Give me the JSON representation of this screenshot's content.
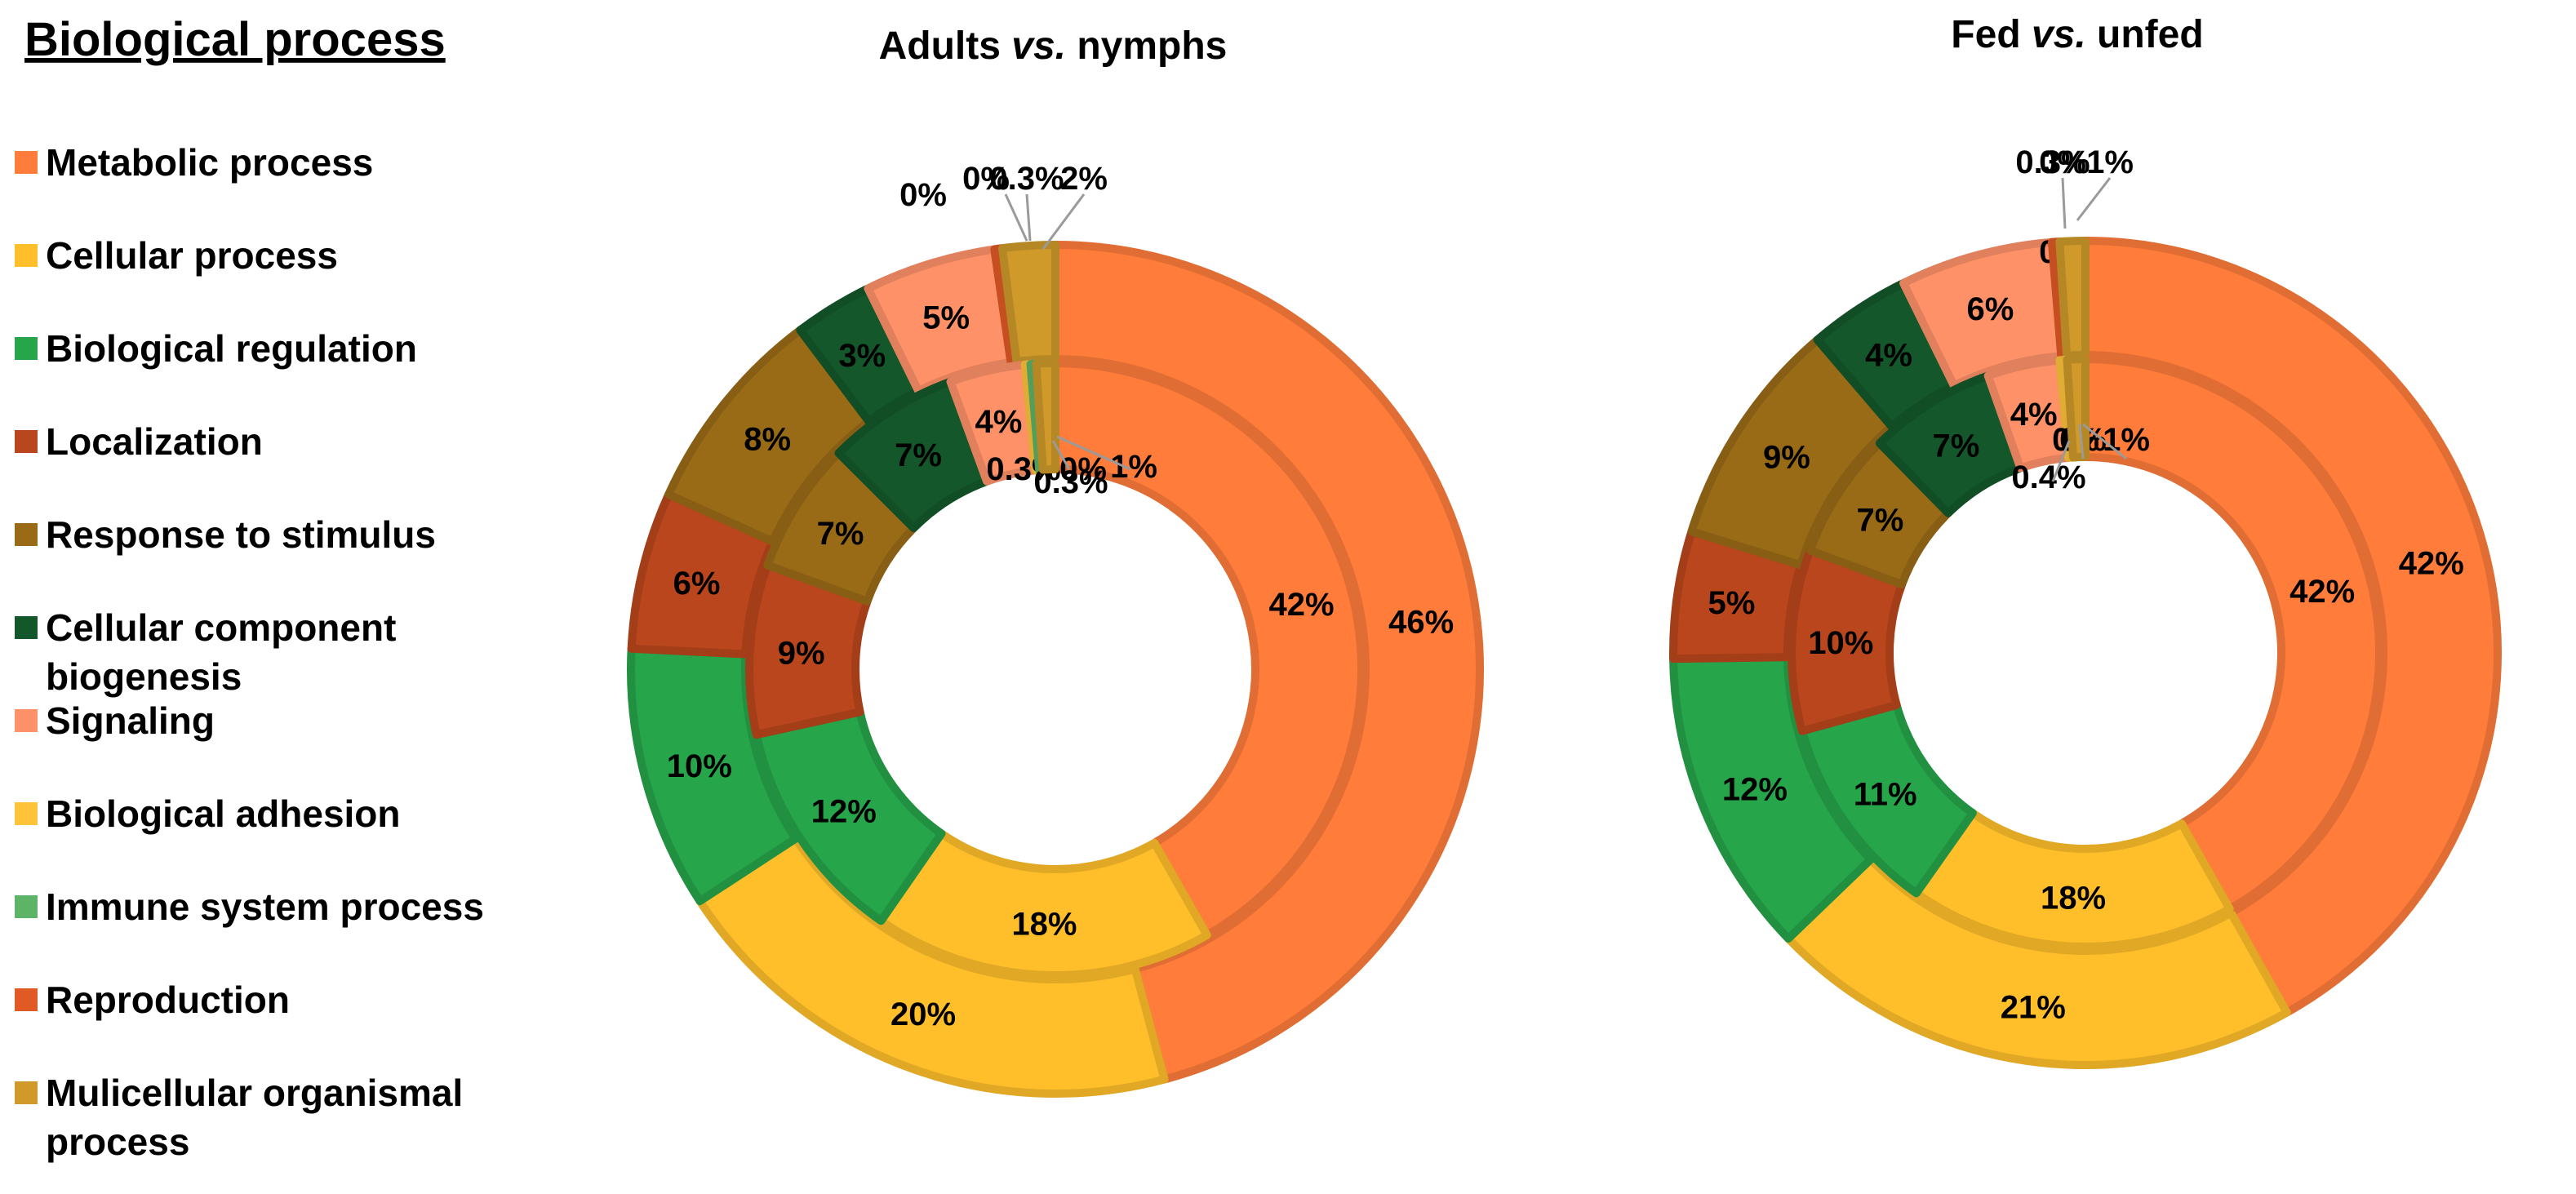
{
  "legend": {
    "title": "Biological process",
    "items": [
      {
        "lines": [
          "Metabolic process"
        ],
        "color": "#FF7C3A"
      },
      {
        "lines": [
          "Cellular process"
        ],
        "color": "#FFBF2A"
      },
      {
        "lines": [
          "Biological regulation"
        ],
        "color": "#26A54A"
      },
      {
        "lines": [
          "Localization"
        ],
        "color": "#B9461C"
      },
      {
        "lines": [
          "Response to stimulus"
        ],
        "color": "#9A6B17"
      },
      {
        "lines": [
          "Cellular component",
          "biogenesis"
        ],
        "color": "#13572A"
      },
      {
        "lines": [
          "Signaling"
        ],
        "color": "#FF9168"
      },
      {
        "lines": [
          "Biological adhesion"
        ],
        "color": "#FFC33A"
      },
      {
        "lines": [
          "Immune system process"
        ],
        "color": "#5DB466"
      },
      {
        "lines": [
          "Reproduction"
        ],
        "color": "#E15A25"
      },
      {
        "lines": [
          "Mulicellular organismal",
          "process"
        ],
        "color": "#CF9A2A"
      }
    ]
  },
  "chart_data": [
    {
      "type": "pie",
      "style": "nested-donut",
      "title_parts": [
        {
          "text": "Adults ",
          "italic": false
        },
        {
          "text": "vs.",
          "italic": true
        },
        {
          "text": " nymphs",
          "italic": false
        }
      ],
      "categories": [
        "Metabolic process",
        "Cellular process",
        "Biological regulation",
        "Localization",
        "Response to stimulus",
        "Cellular component biogenesis",
        "Signaling",
        "Biological adhesion",
        "Immune system process",
        "Reproduction",
        "Mulicellular organismal process"
      ],
      "series": [
        {
          "ring": "outer",
          "values": [
            46,
            20,
            10,
            6,
            8,
            3,
            5,
            0,
            0,
            0.3,
            2
          ],
          "labels": [
            "46%",
            "20%",
            "10%",
            "6%",
            "8%",
            "3%",
            "5%",
            "0%",
            "0%",
            "0.3%",
            "2%"
          ]
        },
        {
          "ring": "inner",
          "values": [
            42,
            18,
            12,
            9,
            7,
            7,
            4,
            0.3,
            0.3,
            0,
            1
          ],
          "labels": [
            "42%",
            "18%",
            "12%",
            "9%",
            "7%",
            "7%",
            "4%",
            "0.3%",
            "0.3%",
            "0%",
            "1%"
          ]
        }
      ]
    },
    {
      "type": "pie",
      "style": "nested-donut",
      "title_parts": [
        {
          "text": "Fed ",
          "italic": false
        },
        {
          "text": "vs.",
          "italic": true
        },
        {
          "text": " unfed",
          "italic": false
        }
      ],
      "categories": [
        "Metabolic process",
        "Cellular process",
        "Biological regulation",
        "Localization",
        "Response to stimulus",
        "Cellular component biogenesis",
        "Signaling",
        "Biological adhesion",
        "Immune system process",
        "Reproduction",
        "Mulicellular organismal process"
      ],
      "series": [
        {
          "ring": "outer",
          "values": [
            42,
            21,
            12,
            5,
            9,
            4,
            6,
            0,
            0,
            0.3,
            1
          ],
          "labels": [
            "42%",
            "21%",
            "12%",
            "5%",
            "9%",
            "4%",
            "6%",
            "0%",
            "0%",
            "0.3%",
            "1%"
          ]
        },
        {
          "ring": "inner",
          "values": [
            42,
            18,
            11,
            10,
            7,
            7,
            4,
            0.4,
            0,
            0,
            1
          ],
          "labels": [
            "42%",
            "18%",
            "11%",
            "10%",
            "7%",
            "7%",
            "4%",
            "0.4%",
            "0%",
            "0%",
            "1%"
          ]
        }
      ]
    }
  ]
}
